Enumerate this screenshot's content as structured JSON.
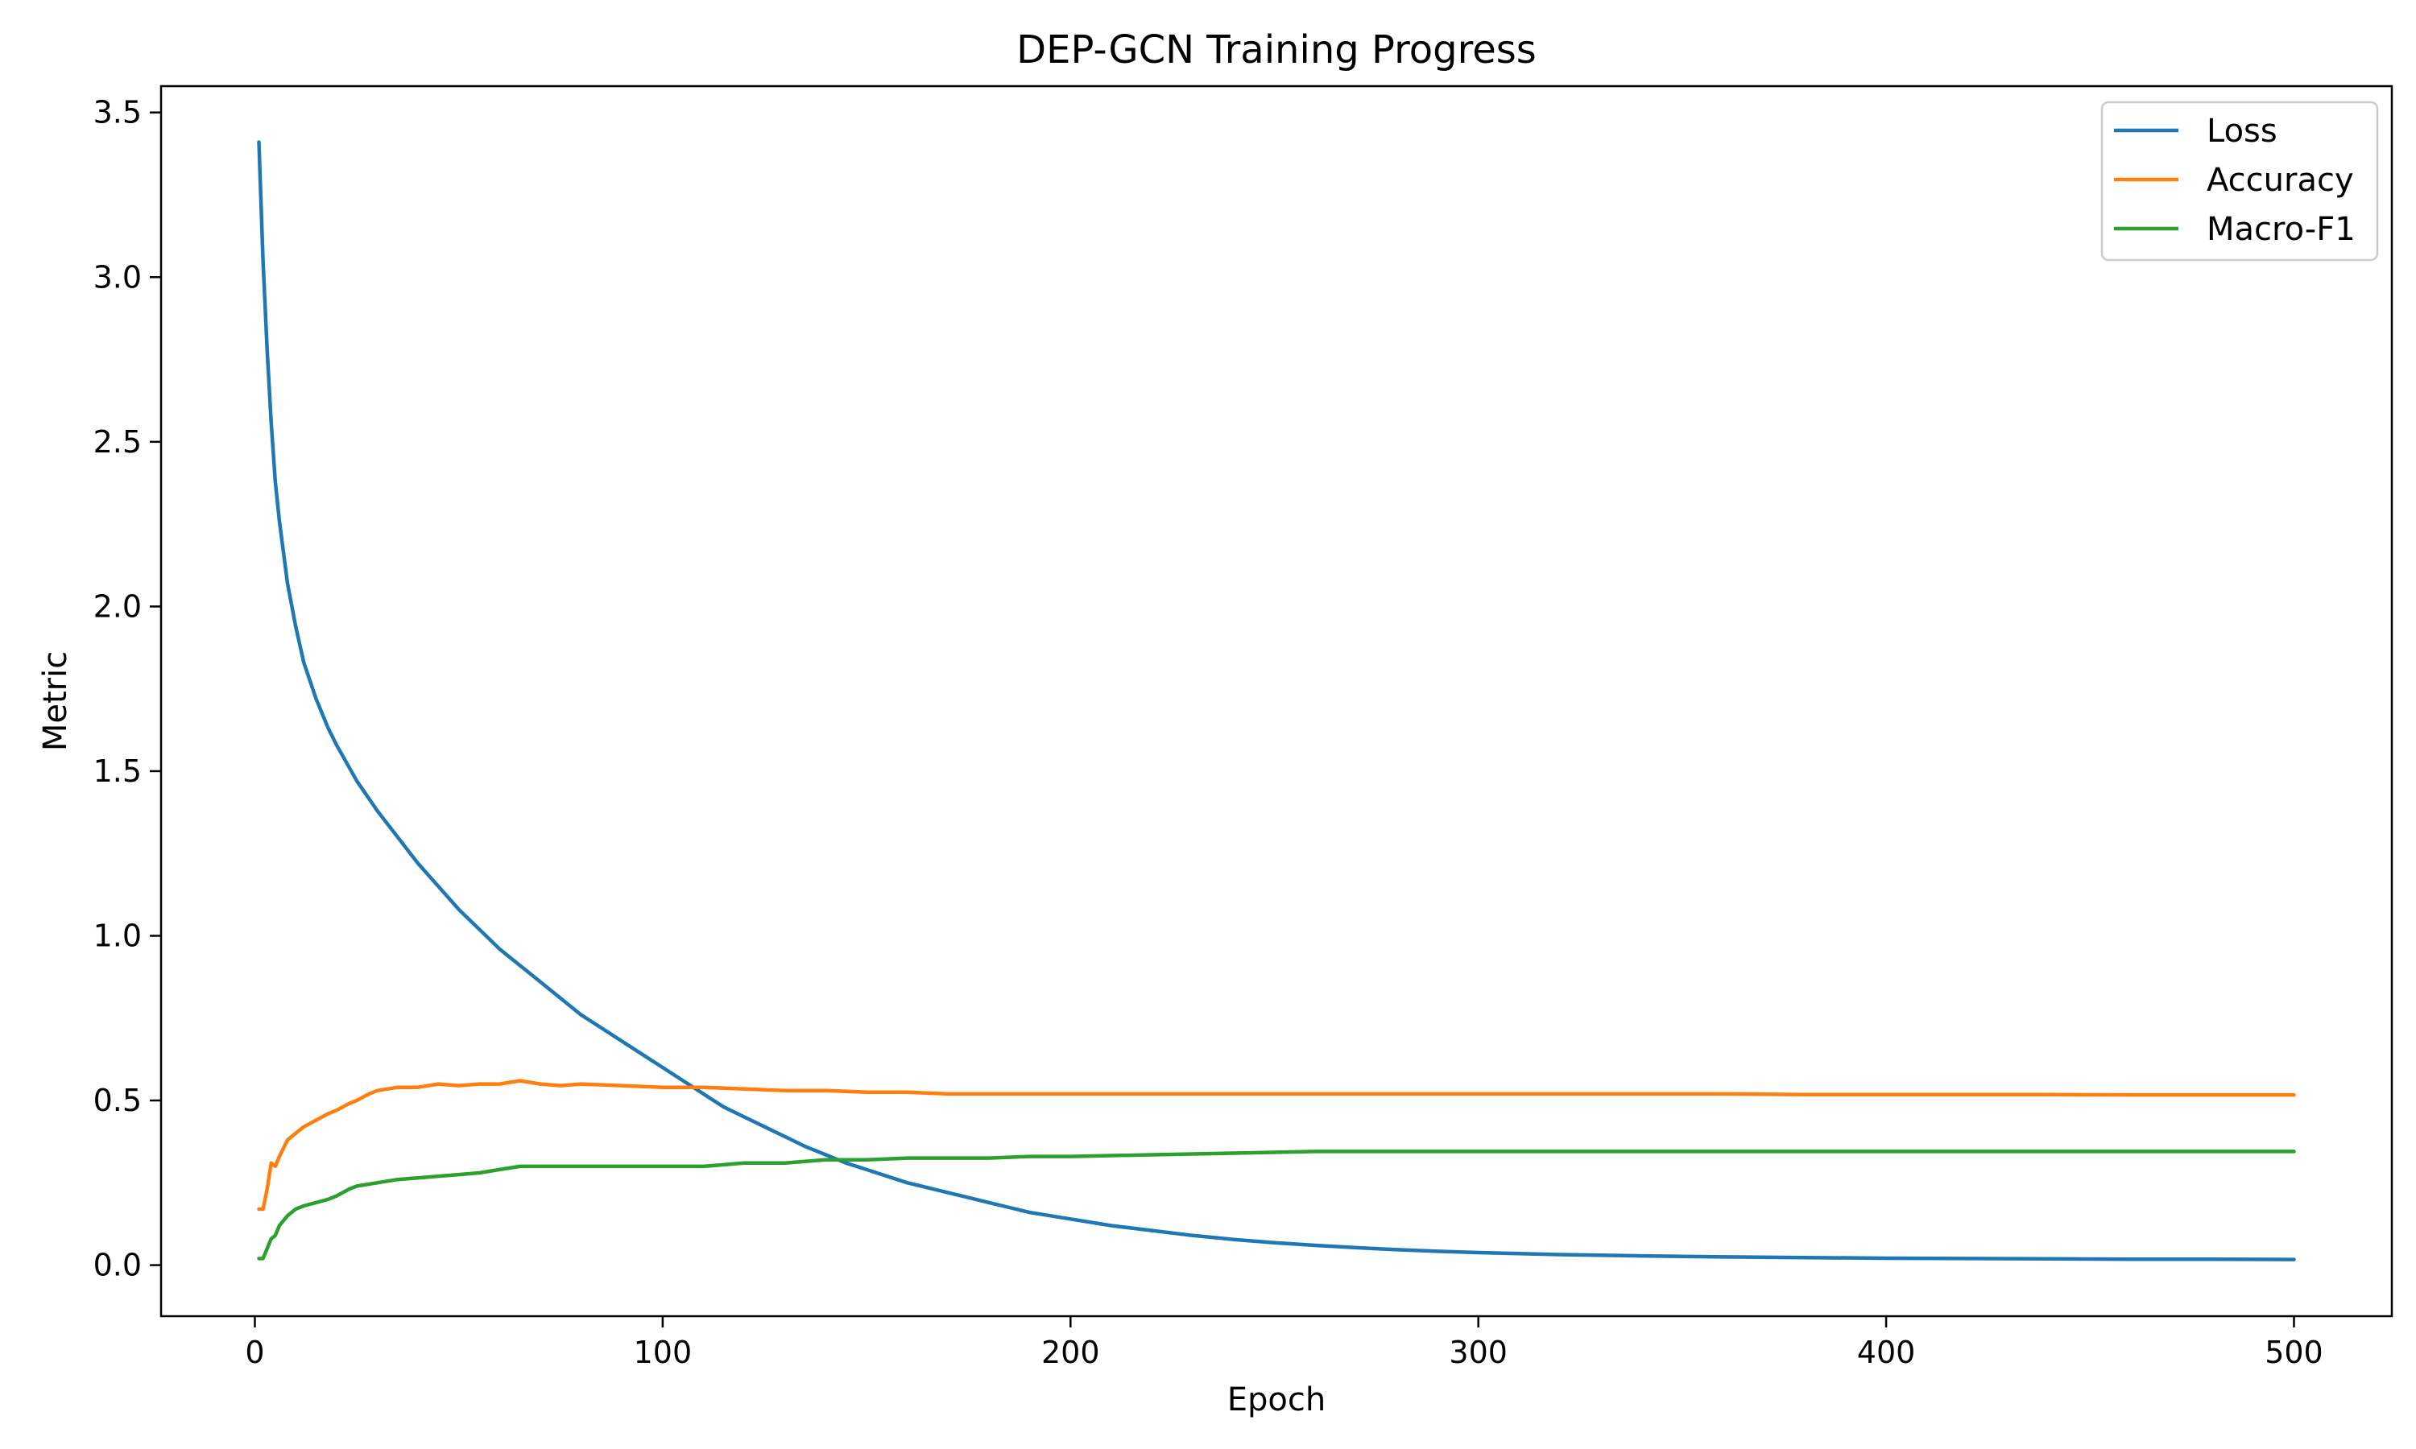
{
  "chart_data": {
    "type": "line",
    "title": "DEP-GCN Training Progress",
    "xlabel": "Epoch",
    "ylabel": "Metric",
    "xlim": [
      -23,
      524
    ],
    "ylim": [
      -0.155,
      3.58
    ],
    "xticks": [
      0,
      100,
      200,
      300,
      400,
      500
    ],
    "yticks": [
      0.0,
      0.5,
      1.0,
      1.5,
      2.0,
      2.5,
      3.0,
      3.5
    ],
    "xtick_labels": [
      "0",
      "100",
      "200",
      "300",
      "400",
      "500"
    ],
    "ytick_labels": [
      "0.0",
      "0.5",
      "1.0",
      "1.5",
      "2.0",
      "2.5",
      "3.0",
      "3.5"
    ],
    "grid": false,
    "legend_position": "top-right",
    "series": [
      {
        "name": "Loss",
        "color": "#1f77b4",
        "points": [
          [
            1,
            3.41
          ],
          [
            2,
            3.05
          ],
          [
            3,
            2.78
          ],
          [
            4,
            2.56
          ],
          [
            5,
            2.38
          ],
          [
            6,
            2.26
          ],
          [
            8,
            2.07
          ],
          [
            10,
            1.94
          ],
          [
            12,
            1.83
          ],
          [
            15,
            1.72
          ],
          [
            18,
            1.63
          ],
          [
            20,
            1.58
          ],
          [
            25,
            1.47
          ],
          [
            30,
            1.38
          ],
          [
            35,
            1.3
          ],
          [
            40,
            1.22
          ],
          [
            45,
            1.15
          ],
          [
            50,
            1.08
          ],
          [
            55,
            1.02
          ],
          [
            60,
            0.96
          ],
          [
            65,
            0.91
          ],
          [
            70,
            0.86
          ],
          [
            75,
            0.81
          ],
          [
            80,
            0.76
          ],
          [
            85,
            0.72
          ],
          [
            90,
            0.68
          ],
          [
            95,
            0.64
          ],
          [
            100,
            0.6
          ],
          [
            105,
            0.56
          ],
          [
            110,
            0.52
          ],
          [
            115,
            0.48
          ],
          [
            120,
            0.45
          ],
          [
            125,
            0.42
          ],
          [
            130,
            0.39
          ],
          [
            135,
            0.36
          ],
          [
            140,
            0.335
          ],
          [
            145,
            0.31
          ],
          [
            150,
            0.29
          ],
          [
            155,
            0.27
          ],
          [
            160,
            0.25
          ],
          [
            165,
            0.235
          ],
          [
            170,
            0.22
          ],
          [
            175,
            0.205
          ],
          [
            180,
            0.19
          ],
          [
            185,
            0.175
          ],
          [
            190,
            0.16
          ],
          [
            195,
            0.15
          ],
          [
            200,
            0.14
          ],
          [
            210,
            0.12
          ],
          [
            220,
            0.105
          ],
          [
            230,
            0.09
          ],
          [
            240,
            0.078
          ],
          [
            250,
            0.068
          ],
          [
            260,
            0.06
          ],
          [
            270,
            0.053
          ],
          [
            280,
            0.047
          ],
          [
            290,
            0.042
          ],
          [
            300,
            0.038
          ],
          [
            320,
            0.032
          ],
          [
            340,
            0.028
          ],
          [
            360,
            0.025
          ],
          [
            380,
            0.023
          ],
          [
            400,
            0.021
          ],
          [
            420,
            0.02
          ],
          [
            440,
            0.019
          ],
          [
            460,
            0.018
          ],
          [
            480,
            0.018
          ],
          [
            500,
            0.017
          ]
        ]
      },
      {
        "name": "Accuracy",
        "color": "#ff7f0e",
        "points": [
          [
            1,
            0.17
          ],
          [
            2,
            0.17
          ],
          [
            3,
            0.23
          ],
          [
            4,
            0.31
          ],
          [
            5,
            0.3
          ],
          [
            6,
            0.33
          ],
          [
            8,
            0.38
          ],
          [
            10,
            0.4
          ],
          [
            12,
            0.42
          ],
          [
            15,
            0.44
          ],
          [
            18,
            0.46
          ],
          [
            20,
            0.47
          ],
          [
            23,
            0.49
          ],
          [
            25,
            0.5
          ],
          [
            28,
            0.52
          ],
          [
            30,
            0.53
          ],
          [
            35,
            0.54
          ],
          [
            40,
            0.54
          ],
          [
            45,
            0.55
          ],
          [
            50,
            0.545
          ],
          [
            55,
            0.55
          ],
          [
            60,
            0.55
          ],
          [
            65,
            0.56
          ],
          [
            70,
            0.55
          ],
          [
            75,
            0.545
          ],
          [
            80,
            0.55
          ],
          [
            90,
            0.545
          ],
          [
            100,
            0.54
          ],
          [
            110,
            0.54
          ],
          [
            120,
            0.535
          ],
          [
            130,
            0.53
          ],
          [
            140,
            0.53
          ],
          [
            150,
            0.525
          ],
          [
            160,
            0.525
          ],
          [
            170,
            0.52
          ],
          [
            180,
            0.52
          ],
          [
            190,
            0.52
          ],
          [
            200,
            0.52
          ],
          [
            220,
            0.52
          ],
          [
            240,
            0.52
          ],
          [
            260,
            0.52
          ],
          [
            280,
            0.52
          ],
          [
            300,
            0.52
          ],
          [
            320,
            0.52
          ],
          [
            340,
            0.52
          ],
          [
            360,
            0.52
          ],
          [
            380,
            0.518
          ],
          [
            400,
            0.518
          ],
          [
            420,
            0.518
          ],
          [
            440,
            0.518
          ],
          [
            460,
            0.517
          ],
          [
            480,
            0.517
          ],
          [
            500,
            0.517
          ]
        ]
      },
      {
        "name": "Macro-F1",
        "color": "#2ca02c",
        "points": [
          [
            1,
            0.02
          ],
          [
            2,
            0.02
          ],
          [
            3,
            0.05
          ],
          [
            4,
            0.08
          ],
          [
            5,
            0.09
          ],
          [
            6,
            0.12
          ],
          [
            8,
            0.15
          ],
          [
            10,
            0.17
          ],
          [
            12,
            0.18
          ],
          [
            15,
            0.19
          ],
          [
            18,
            0.2
          ],
          [
            20,
            0.21
          ],
          [
            23,
            0.23
          ],
          [
            25,
            0.24
          ],
          [
            30,
            0.25
          ],
          [
            35,
            0.26
          ],
          [
            40,
            0.265
          ],
          [
            45,
            0.27
          ],
          [
            50,
            0.275
          ],
          [
            55,
            0.28
          ],
          [
            60,
            0.29
          ],
          [
            65,
            0.3
          ],
          [
            70,
            0.3
          ],
          [
            75,
            0.3
          ],
          [
            80,
            0.3
          ],
          [
            90,
            0.3
          ],
          [
            100,
            0.3
          ],
          [
            110,
            0.3
          ],
          [
            120,
            0.31
          ],
          [
            130,
            0.31
          ],
          [
            140,
            0.32
          ],
          [
            150,
            0.32
          ],
          [
            160,
            0.325
          ],
          [
            170,
            0.325
          ],
          [
            180,
            0.325
          ],
          [
            190,
            0.33
          ],
          [
            200,
            0.33
          ],
          [
            220,
            0.335
          ],
          [
            240,
            0.34
          ],
          [
            260,
            0.345
          ],
          [
            280,
            0.345
          ],
          [
            300,
            0.345
          ],
          [
            320,
            0.345
          ],
          [
            340,
            0.345
          ],
          [
            360,
            0.345
          ],
          [
            380,
            0.345
          ],
          [
            400,
            0.345
          ],
          [
            420,
            0.345
          ],
          [
            440,
            0.345
          ],
          [
            460,
            0.345
          ],
          [
            480,
            0.345
          ],
          [
            500,
            0.345
          ]
        ]
      }
    ]
  }
}
